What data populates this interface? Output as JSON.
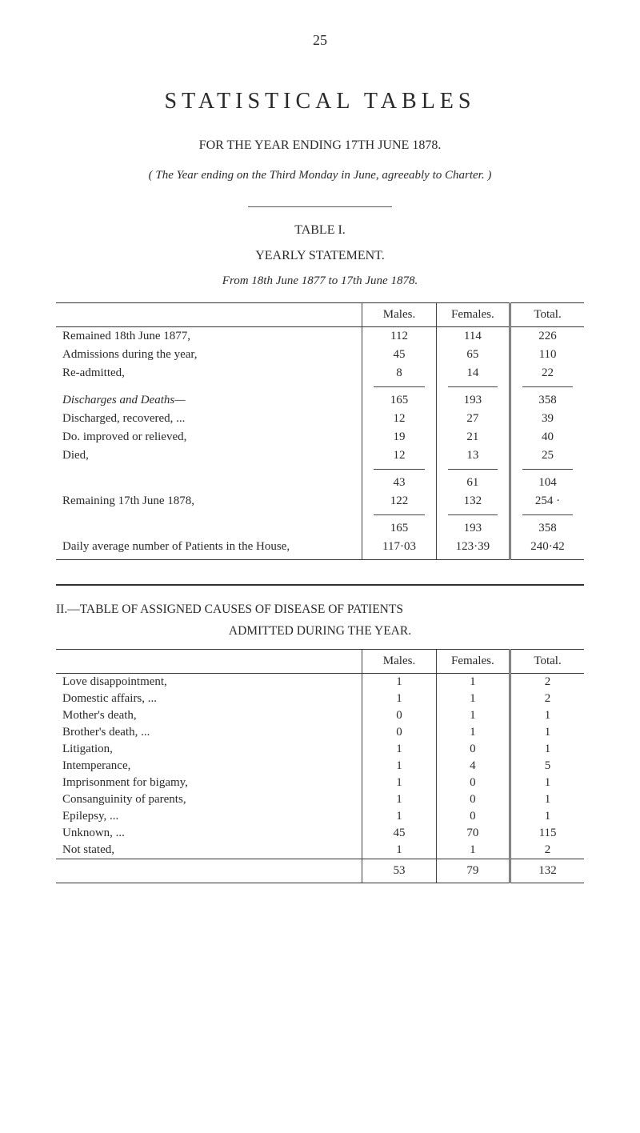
{
  "page_number": "25",
  "main_title": "STATISTICAL TABLES",
  "subtitle": "FOR THE YEAR ENDING 17TH JUNE 1878.",
  "charter_line": "( The Year ending on the Third Monday in June, agreeably to Charter. )",
  "table1": {
    "label": "TABLE I.",
    "heading": "YEARLY STATEMENT.",
    "caption": "From 18th June 1877 to 17th June 1878.",
    "headers": {
      "males": "Males.",
      "females": "Females.",
      "total": "Total."
    },
    "rows": [
      {
        "label": "Remained 18th June 1877,",
        "m": "112",
        "f": "114",
        "t": "226"
      },
      {
        "label": "Admissions during the year,",
        "m": "45",
        "f": "65",
        "t": "110"
      },
      {
        "label": "Re-admitted,",
        "m": "8",
        "f": "14",
        "t": "22"
      }
    ],
    "subtotal1": {
      "m": "165",
      "f": "193",
      "t": "358"
    },
    "discharges_header": "Discharges and Deaths—",
    "discharge_rows": [
      {
        "label": "Discharged, recovered, ...",
        "m": "12",
        "f": "27",
        "t": "39"
      },
      {
        "label": "Do.        improved or relieved,",
        "m": "19",
        "f": "21",
        "t": "40",
        "indent": true
      },
      {
        "label": "Died,",
        "m": "12",
        "f": "13",
        "t": "25"
      }
    ],
    "subtotal2": {
      "m": "43",
      "f": "61",
      "t": "104"
    },
    "remaining": {
      "label": "Remaining 17th June 1878,",
      "m": "122",
      "f": "132",
      "t": "254  ·"
    },
    "subtotal3": {
      "m": "165",
      "f": "193",
      "t": "358"
    },
    "daily_avg": {
      "label": "Daily average number of Patients in the House,",
      "m": "117·03",
      "f": "123·39",
      "t": "240·42"
    }
  },
  "table2": {
    "title_line1": "II.—TABLE OF ASSIGNED CAUSES OF DISEASE OF PATIENTS",
    "title_line2": "ADMITTED DURING THE YEAR.",
    "headers": {
      "males": "Males.",
      "females": "Females.",
      "total": "Total."
    },
    "rows": [
      {
        "label": "Love disappointment,",
        "m": "1",
        "f": "1",
        "t": "2"
      },
      {
        "label": "Domestic affairs, ...",
        "m": "1",
        "f": "1",
        "t": "2"
      },
      {
        "label": "Mother's death,",
        "m": "0",
        "f": "1",
        "t": "1"
      },
      {
        "label": "Brother's death, ...",
        "m": "0",
        "f": "1",
        "t": "1"
      },
      {
        "label": "Litigation,",
        "m": "1",
        "f": "0",
        "t": "1"
      },
      {
        "label": "Intemperance,",
        "m": "1",
        "f": "4",
        "t": "5"
      },
      {
        "label": "Imprisonment for bigamy,",
        "m": "1",
        "f": "0",
        "t": "1"
      },
      {
        "label": "Consanguinity of parents,",
        "m": "1",
        "f": "0",
        "t": "1"
      },
      {
        "label": "Epilepsy, ...",
        "m": "1",
        "f": "0",
        "t": "1"
      },
      {
        "label": "Unknown, ...",
        "m": "45",
        "f": "70",
        "t": "115"
      },
      {
        "label": "Not stated,",
        "m": "1",
        "f": "1",
        "t": "2"
      }
    ],
    "totals": {
      "m": "53",
      "f": "79",
      "t": "132"
    }
  },
  "colors": {
    "text": "#2a2a2a",
    "rule": "#333333",
    "bg": "#ffffff"
  }
}
